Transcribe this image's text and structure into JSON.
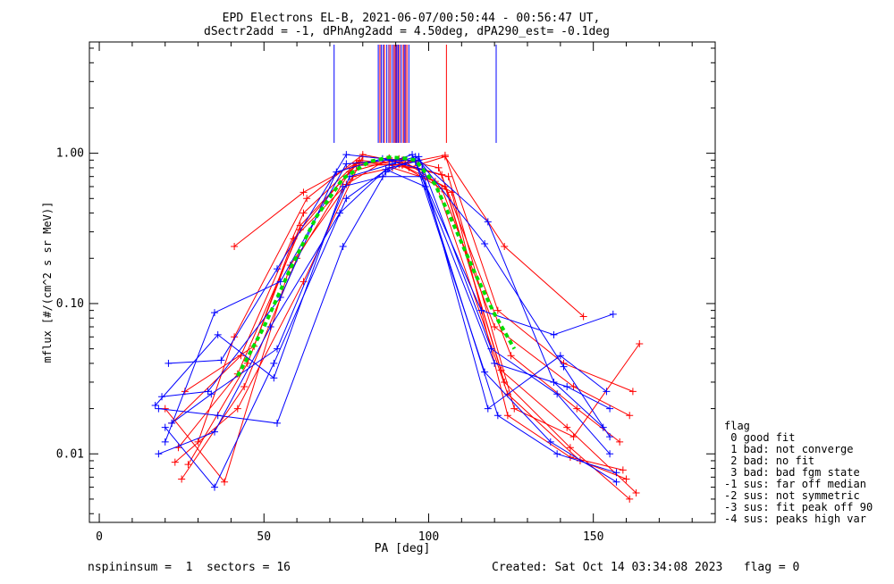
{
  "header": {
    "title_line1": "EPD Electrons EL-B, 2021-06-07/00:50:44 - 00:56:47 UT,",
    "title_line2": "dSectr2add = -1, dPhAng2add = 4.50deg, dPA290_est=  -0.1deg"
  },
  "footer": {
    "left": "nspininsum =  1  sectors = 16",
    "right": "Created: Sat Oct 14 03:34:08 2023   flag = 0"
  },
  "legend": {
    "title": "flag",
    "items": [
      " 0 good fit",
      " 1 bad: not converge",
      " 2 bad: no fit",
      " 3 bad: bad fgm state",
      "-1 sus: far off median",
      "-2 sus: not symmetric",
      "-3 sus: fit peak off 90",
      "-4 sus: peaks high var"
    ]
  },
  "colors": {
    "red": "#ff0000",
    "blue": "#0000ff",
    "purple": "#800080",
    "green": "#00dd00",
    "axes": "#000000"
  },
  "chart_data": {
    "type": "line",
    "xlabel": "PA [deg]",
    "ylabel": "mflux [#/(cm^2 s sr MeV)]",
    "xlim": [
      -3,
      187
    ],
    "ylim": [
      0.0035,
      5.5
    ],
    "yscale": "log",
    "xticks": [
      0,
      50,
      100,
      150
    ],
    "yticks": [
      0.01,
      0.1,
      1.0
    ],
    "ytick_labels": [
      "0.01",
      "0.10",
      "1.00"
    ],
    "peak_markers": {
      "red": [
        85.2,
        86.6,
        88.3,
        89.8,
        91.2,
        92.3,
        93.4,
        105.4
      ],
      "blue": [
        71.3,
        84.7,
        85.6,
        86.2,
        87.3,
        88.9,
        90.1,
        90.8,
        91.7,
        92.6,
        94.0,
        120.5
      ],
      "purple": [
        87.9,
        89.4,
        90.4,
        93.0
      ]
    },
    "series": [
      {
        "color": "red",
        "x": [
          24,
          42,
          61,
          78,
          90,
          104,
          122,
          142,
          163
        ],
        "y": [
          0.011,
          0.034,
          0.31,
          0.85,
          0.88,
          0.72,
          0.036,
          0.015,
          0.0055
        ]
      },
      {
        "color": "red",
        "x": [
          22,
          43,
          62,
          79,
          92,
          105,
          123,
          143,
          161
        ],
        "y": [
          0.016,
          0.045,
          0.4,
          0.9,
          0.83,
          0.6,
          0.03,
          0.011,
          0.005
        ]
      },
      {
        "color": "red",
        "x": [
          25,
          44,
          60,
          76,
          91,
          103,
          125,
          145,
          158
        ],
        "y": [
          0.0068,
          0.028,
          0.2,
          0.75,
          0.92,
          0.8,
          0.045,
          0.02,
          0.012
        ]
      },
      {
        "color": "red",
        "x": [
          30,
          41,
          63,
          80,
          93,
          105,
          121,
          141,
          162
        ],
        "y": [
          0.012,
          0.06,
          0.5,
          0.98,
          0.86,
          0.97,
          0.09,
          0.04,
          0.026
        ]
      },
      {
        "color": "red",
        "x": [
          20,
          38,
          58,
          77,
          89,
          102,
          124,
          146,
          160
        ],
        "y": [
          0.02,
          0.0065,
          0.18,
          0.7,
          0.8,
          0.65,
          0.025,
          0.009,
          0.0068
        ]
      },
      {
        "color": "red",
        "x": [
          27,
          45,
          61,
          78,
          91,
          106,
          126,
          144,
          164
        ],
        "y": [
          0.0085,
          0.04,
          0.33,
          0.83,
          0.84,
          0.7,
          0.02,
          0.013,
          0.054
        ]
      },
      {
        "color": "red",
        "x": [
          41,
          62,
          79,
          94,
          105,
          123,
          147
        ],
        "y": [
          0.24,
          0.55,
          0.88,
          0.8,
          0.95,
          0.24,
          0.082
        ]
      },
      {
        "color": "red",
        "x": [
          26,
          47,
          59,
          75,
          88,
          104,
          120,
          144,
          161
        ],
        "y": [
          0.026,
          0.052,
          0.27,
          0.62,
          0.93,
          0.58,
          0.07,
          0.028,
          0.018
        ]
      },
      {
        "color": "red",
        "x": [
          23,
          42,
          62,
          80,
          92,
          107,
          124,
          143,
          159
        ],
        "y": [
          0.0088,
          0.02,
          0.14,
          0.95,
          0.9,
          0.55,
          0.018,
          0.0095,
          0.0078
        ]
      },
      {
        "color": "blue",
        "x": [
          18,
          36,
          54,
          74,
          87,
          97,
          119,
          139,
          155
        ],
        "y": [
          0.02,
          0.018,
          0.016,
          0.24,
          0.75,
          0.95,
          0.05,
          0.025,
          0.01
        ]
      },
      {
        "color": "blue",
        "x": [
          20,
          35,
          53,
          75,
          88,
          96,
          117,
          137,
          157
        ],
        "y": [
          0.015,
          0.006,
          0.04,
          0.5,
          0.8,
          0.88,
          0.035,
          0.012,
          0.0065
        ]
      },
      {
        "color": "blue",
        "x": [
          19,
          33,
          55,
          72,
          86,
          98,
          118,
          140,
          154
        ],
        "y": [
          0.024,
          0.026,
          0.11,
          0.75,
          0.92,
          0.78,
          0.02,
          0.045,
          0.026
        ]
      },
      {
        "color": "blue",
        "x": [
          21,
          37,
          54,
          75,
          90,
          95,
          116,
          138,
          156
        ],
        "y": [
          0.04,
          0.042,
          0.17,
          0.98,
          0.9,
          0.98,
          0.09,
          0.062,
          0.085
        ]
      },
      {
        "color": "blue",
        "x": [
          18,
          35,
          52,
          73,
          87,
          99,
          120,
          142,
          155
        ],
        "y": [
          0.01,
          0.014,
          0.07,
          0.4,
          0.78,
          0.6,
          0.04,
          0.028,
          0.02
        ]
      },
      {
        "color": "blue",
        "x": [
          22,
          34,
          54,
          76,
          89,
          96,
          118,
          138,
          153
        ],
        "y": [
          0.016,
          0.025,
          0.05,
          0.7,
          0.85,
          0.95,
          0.35,
          0.03,
          0.015
        ]
      },
      {
        "color": "blue",
        "x": [
          17,
          36,
          53,
          74,
          86,
          98,
          121,
          139,
          157
        ],
        "y": [
          0.021,
          0.062,
          0.032,
          0.6,
          0.7,
          0.7,
          0.018,
          0.01,
          0.0075
        ]
      },
      {
        "color": "blue",
        "x": [
          20,
          35,
          55,
          75,
          88,
          97,
          117,
          141,
          155
        ],
        "y": [
          0.012,
          0.087,
          0.14,
          0.85,
          0.9,
          0.9,
          0.25,
          0.038,
          0.013
        ]
      }
    ],
    "median_curve": {
      "color": "green",
      "x": [
        42,
        50,
        58,
        66,
        74,
        82,
        88,
        92,
        96,
        102,
        108,
        114,
        120,
        126
      ],
      "y": [
        0.033,
        0.07,
        0.17,
        0.38,
        0.68,
        0.88,
        0.94,
        0.93,
        0.9,
        0.62,
        0.32,
        0.16,
        0.085,
        0.05
      ]
    }
  }
}
